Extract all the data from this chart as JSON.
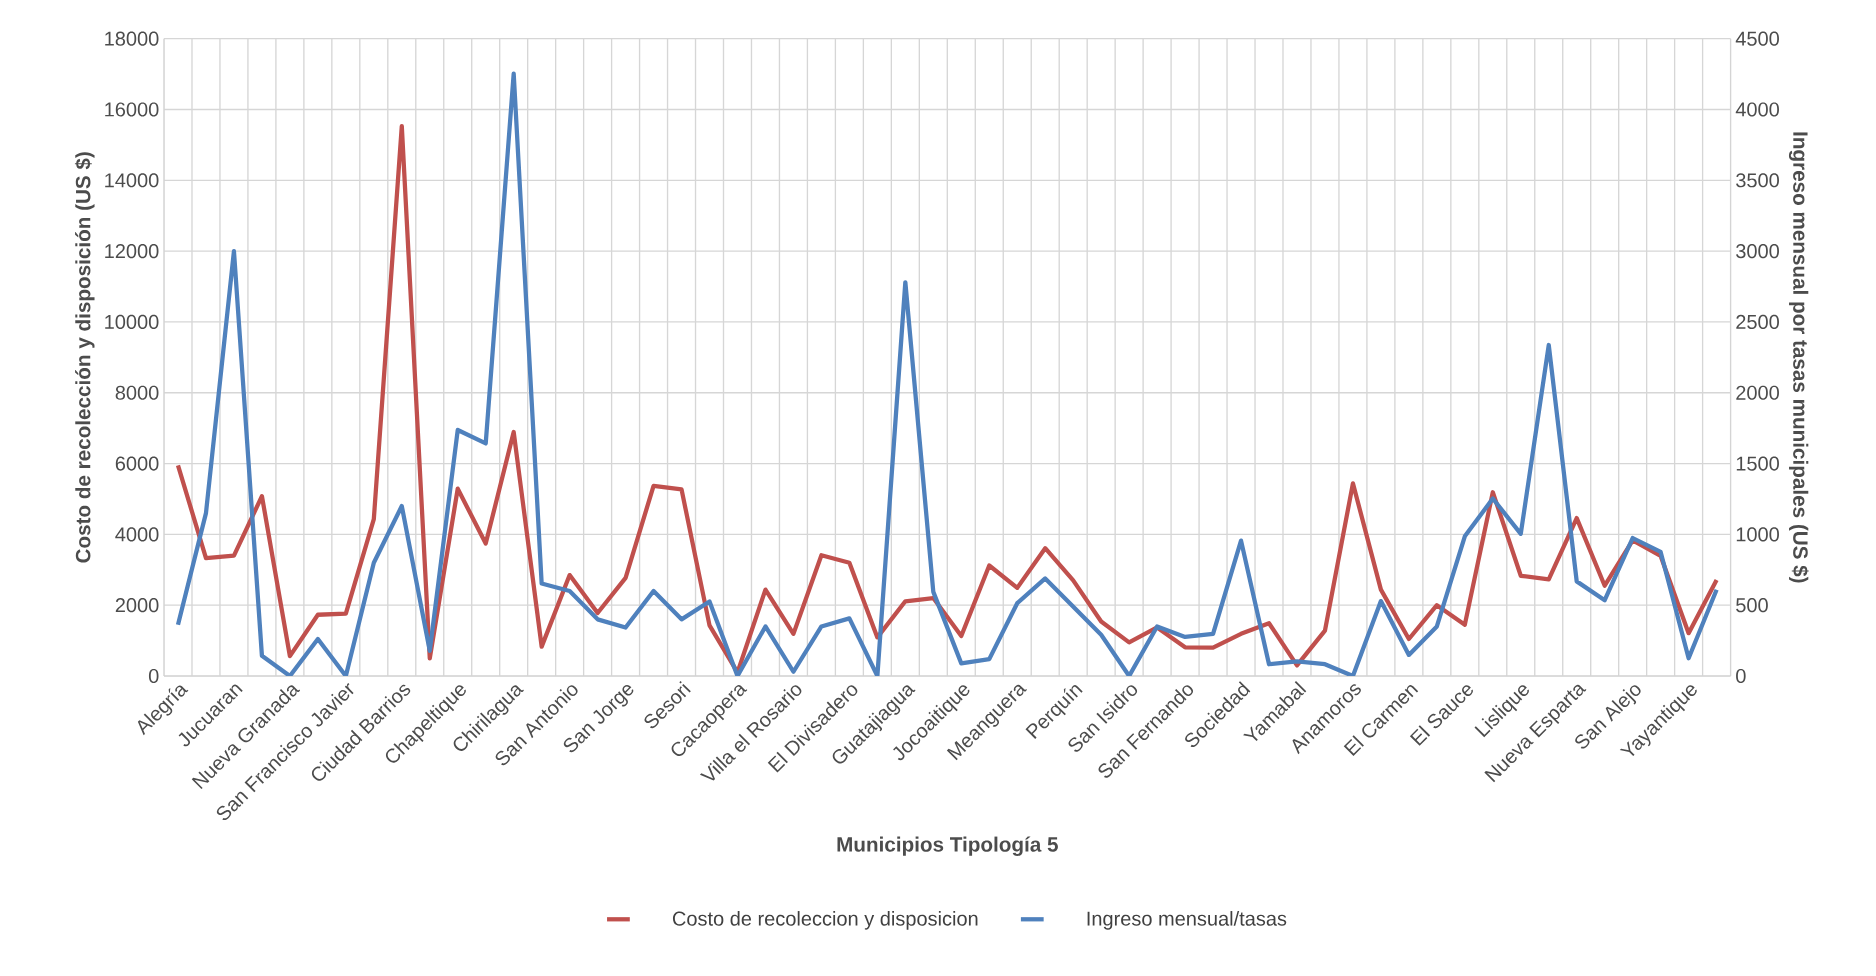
{
  "chart_data": {
    "type": "line",
    "xlabel": "Municipios Tipología 5",
    "ylabel": "Costo de recolección y disposición (US $)",
    "y2label": "Ingreso mensual por tasas municipales (US $)",
    "categories": [
      "Alegría",
      null,
      "Jucuaran",
      null,
      "Nueva Granada",
      null,
      "San Francisco Javier",
      null,
      "Ciudad Barrios",
      null,
      "Chapeltique",
      null,
      "Chirilagua",
      null,
      "San Antonio",
      null,
      "San Jorge",
      null,
      "Sesori",
      null,
      "Cacaopera",
      null,
      "Villa el Rosario",
      null,
      "El Divisadero",
      null,
      "Guatajiagua",
      null,
      "Jocoaitique",
      null,
      "Meanguera",
      null,
      "Perquín",
      null,
      "San Isidro",
      null,
      "San Fernando",
      null,
      "Sociedad",
      null,
      "Yamabal",
      null,
      "Anamoros",
      null,
      "El Carmen",
      null,
      "El Sauce",
      null,
      "Lislique",
      null,
      "Nueva Esparta",
      null,
      "San Alejo",
      null,
      "Yayantique",
      null
    ],
    "series": [
      {
        "name": "Costo de recoleccion y disposicion",
        "color": "#c0504d",
        "values": [
          5950,
          3330,
          3400,
          5080,
          560,
          1730,
          1760,
          4430,
          15530,
          500,
          5290,
          3740,
          6890,
          830,
          2850,
          1780,
          2770,
          5370,
          5270,
          1430,
          100,
          2440,
          1190,
          3410,
          3200,
          1090,
          2110,
          2200,
          1130,
          3120,
          2490,
          3610,
          2700,
          1540,
          950,
          1370,
          810,
          800,
          1190,
          1490,
          300,
          1280,
          5440,
          2440,
          1045,
          2000,
          1450,
          5190,
          2830,
          2730,
          4460,
          2550,
          3830,
          3390,
          1210,
          2710
        ]
      },
      {
        "name": "Ingreso mensual/tasas",
        "color": "#4f81bd",
        "axis": "y2",
        "values": [
          362,
          1150,
          3000,
          143,
          0,
          261,
          0,
          800,
          1200,
          178,
          1737,
          1642,
          4253,
          653,
          600,
          400,
          342,
          600,
          400,
          526,
          0,
          350,
          30,
          350,
          407,
          0,
          2780,
          594,
          89,
          119,
          514,
          689,
          490,
          291,
          0,
          350,
          276,
          297,
          956,
          83,
          104,
          83,
          0,
          529,
          149,
          350,
          986,
          1253,
          1004,
          2337,
          668,
          535,
          974,
          876,
          125,
          609
        ]
      }
    ],
    "ylim": [
      0,
      18000
    ],
    "yticks": [
      0,
      2000,
      4000,
      6000,
      8000,
      10000,
      12000,
      14000,
      16000,
      18000
    ],
    "y2lim": [
      0,
      4500
    ],
    "y2ticks": [
      0,
      500,
      1000,
      1500,
      2000,
      2500,
      3000,
      3500,
      4000,
      4500
    ],
    "grid": true,
    "legend": "bottom",
    "line_style": "solid",
    "marker": "none"
  }
}
